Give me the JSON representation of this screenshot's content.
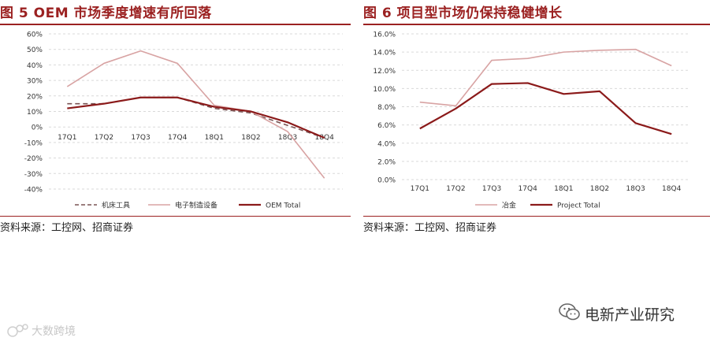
{
  "figures": [
    {
      "title": "图 5 OEM 市场季度增速有所回落",
      "source": "资料来源：工控网、招商证券"
    },
    {
      "title": "图 6  项目型市场仍保持稳健增长",
      "source": "资料来源：工控网、招商证券"
    }
  ],
  "chart_data": [
    {
      "type": "line",
      "categories": [
        "17Q1",
        "17Q2",
        "17Q3",
        "17Q4",
        "18Q1",
        "18Q2",
        "18Q3",
        "18Q4"
      ],
      "yticks": [
        "60%",
        "50%",
        "40%",
        "30%",
        "20%",
        "10%",
        "0%",
        "-10%",
        "-20%",
        "-30%",
        "-40%"
      ],
      "ylim": [
        -40,
        60
      ],
      "grid": true,
      "legend_position": "bottom",
      "series": [
        {
          "name": "机床工具",
          "values": [
            15,
            15,
            19,
            19,
            12,
            9,
            1,
            -7
          ],
          "color": "#7a5353",
          "dash": true
        },
        {
          "name": "电子制造设备",
          "values": [
            26,
            41,
            49,
            41,
            14,
            10,
            -3,
            -33
          ],
          "color": "#d8a3a3",
          "dash": false
        },
        {
          "name": "OEM Total",
          "values": [
            12,
            15,
            19,
            19,
            13,
            10,
            3,
            -7
          ],
          "color": "#8b1a1a",
          "dash": false
        }
      ]
    },
    {
      "type": "line",
      "categories": [
        "17Q1",
        "17Q2",
        "17Q3",
        "17Q4",
        "18Q1",
        "18Q2",
        "18Q3",
        "18Q4"
      ],
      "yticks": [
        "16.0%",
        "14.0%",
        "12.0%",
        "10.0%",
        "8.0%",
        "6.0%",
        "4.0%",
        "2.0%",
        "0.0%"
      ],
      "ylim": [
        0,
        16
      ],
      "grid": true,
      "legend_position": "bottom",
      "series": [
        {
          "name": "冶金",
          "values": [
            8.5,
            8.1,
            13.1,
            13.3,
            14.0,
            14.2,
            14.3,
            12.5
          ],
          "color": "#d8a3a3",
          "dash": false
        },
        {
          "name": "Project Total",
          "values": [
            5.6,
            7.8,
            10.5,
            10.6,
            9.4,
            9.7,
            6.2,
            5.0
          ],
          "color": "#8b1a1a",
          "dash": false
        }
      ]
    }
  ],
  "watermark": {
    "brand": "电新产业研究",
    "bottom_left": "大数跨境"
  }
}
